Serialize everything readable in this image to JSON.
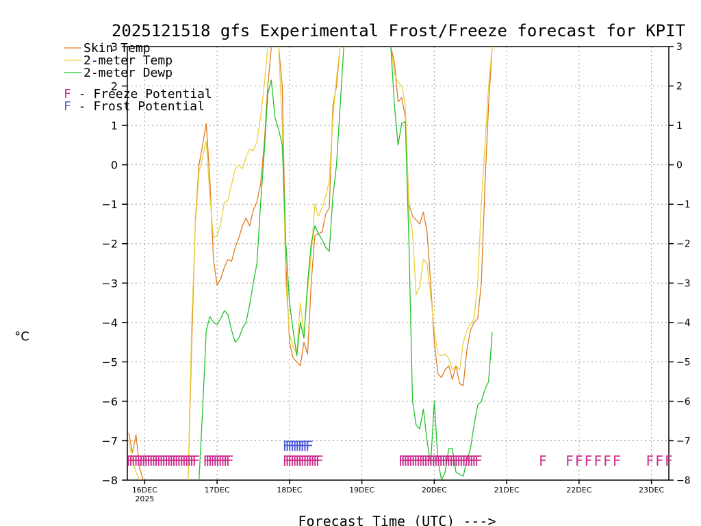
{
  "chart_data": {
    "type": "line",
    "title": "2025121518 gfs Experimental Frost/Freeze forecast for KPIT",
    "xlabel": "Forecast Time (UTC) --->",
    "ylabel": "°C",
    "ylim": [
      -8,
      3
    ],
    "xlim": [
      -0.24,
      7.24
    ],
    "yticks": [
      -8,
      -7,
      -6,
      -5,
      -4,
      -3,
      -2,
      -1,
      0,
      1,
      2,
      3
    ],
    "xticks": [
      {
        "x": 0,
        "label": "16DEC",
        "sub": "2025"
      },
      {
        "x": 1,
        "label": "17DEC",
        "sub": ""
      },
      {
        "x": 2,
        "label": "18DEC",
        "sub": ""
      },
      {
        "x": 3,
        "label": "19DEC",
        "sub": ""
      },
      {
        "x": 4,
        "label": "20DEC",
        "sub": ""
      },
      {
        "x": 5,
        "label": "21DEC",
        "sub": ""
      },
      {
        "x": 6,
        "label": "22DEC",
        "sub": ""
      },
      {
        "x": 7,
        "label": "23DEC",
        "sub": ""
      }
    ],
    "colors": {
      "skin": "#e07b20",
      "t2m": "#e8d23a",
      "dewp": "#22c22a",
      "freeze": "#cc2d8e",
      "frost": "#4a5bd6"
    },
    "legend": [
      {
        "label": "Skin Temp",
        "key": "skin"
      },
      {
        "label": "2-meter Temp",
        "key": "t2m"
      },
      {
        "label": "2-meter Dewp",
        "key": "dewp"
      }
    ],
    "legend_markers": [
      {
        "label": "F - Freeze Potential",
        "key": "freeze"
      },
      {
        "label": "F - Frost Potential",
        "key": "frost"
      }
    ],
    "series": [
      {
        "name": "Skin Temp",
        "key": "skin",
        "segments": [
          [
            [
              -0.22,
              -6.8
            ],
            [
              -0.17,
              -7.3
            ],
            [
              -0.12,
              -6.85
            ],
            [
              -0.07,
              -7.7
            ],
            [
              -0.02,
              -8.0
            ]
          ],
          [
            [
              0.6,
              -8.0
            ],
            [
              0.65,
              -4.5
            ],
            [
              0.7,
              -1.4
            ],
            [
              0.75,
              0.0
            ],
            [
              0.8,
              0.5
            ],
            [
              0.85,
              1.05
            ],
            [
              0.9,
              -0.4
            ],
            [
              0.95,
              -2.4
            ],
            [
              1.0,
              -3.05
            ],
            [
              1.05,
              -2.9
            ],
            [
              1.1,
              -2.6
            ],
            [
              1.15,
              -2.4
            ],
            [
              1.2,
              -2.45
            ],
            [
              1.25,
              -2.1
            ],
            [
              1.3,
              -1.85
            ],
            [
              1.35,
              -1.55
            ],
            [
              1.4,
              -1.35
            ],
            [
              1.45,
              -1.55
            ],
            [
              1.5,
              -1.15
            ],
            [
              1.55,
              -0.95
            ],
            [
              1.6,
              -0.5
            ],
            [
              1.65,
              0.5
            ],
            [
              1.7,
              2.0
            ],
            [
              1.75,
              3.0
            ]
          ],
          [
            [
              1.85,
              3.0
            ],
            [
              1.9,
              2.0
            ],
            [
              1.95,
              -2.5
            ],
            [
              2.0,
              -4.5
            ],
            [
              2.05,
              -4.9
            ],
            [
              2.1,
              -5.0
            ],
            [
              2.15,
              -5.1
            ],
            [
              2.2,
              -4.5
            ],
            [
              2.25,
              -4.8
            ],
            [
              2.3,
              -3.0
            ],
            [
              2.35,
              -1.8
            ],
            [
              2.4,
              -1.75
            ],
            [
              2.45,
              -1.7
            ],
            [
              2.5,
              -1.25
            ],
            [
              2.55,
              -1.1
            ],
            [
              2.6,
              1.5
            ],
            [
              2.65,
              2.0
            ],
            [
              2.7,
              3.0
            ]
          ],
          [
            [
              3.4,
              3.0
            ],
            [
              3.45,
              2.6
            ],
            [
              3.5,
              1.6
            ],
            [
              3.55,
              1.7
            ],
            [
              3.6,
              1.2
            ],
            [
              3.65,
              -1.0
            ],
            [
              3.7,
              -1.3
            ],
            [
              3.75,
              -1.4
            ],
            [
              3.8,
              -1.5
            ],
            [
              3.85,
              -1.2
            ],
            [
              3.9,
              -1.7
            ],
            [
              3.95,
              -3.0
            ],
            [
              4.0,
              -4.5
            ],
            [
              4.05,
              -5.3
            ],
            [
              4.1,
              -5.4
            ],
            [
              4.15,
              -5.2
            ],
            [
              4.2,
              -5.1
            ],
            [
              4.25,
              -5.45
            ],
            [
              4.3,
              -5.1
            ],
            [
              4.35,
              -5.55
            ],
            [
              4.4,
              -5.6
            ],
            [
              4.45,
              -4.7
            ],
            [
              4.5,
              -4.2
            ],
            [
              4.55,
              -4.0
            ],
            [
              4.6,
              -3.9
            ],
            [
              4.65,
              -3.0
            ],
            [
              4.7,
              -0.5
            ],
            [
              4.75,
              1.5
            ],
            [
              4.8,
              3.0
            ]
          ]
        ]
      },
      {
        "name": "2-meter Temp",
        "key": "t2m",
        "segments": [
          [
            [
              -0.22,
              -7.0
            ],
            [
              -0.17,
              -7.5
            ],
            [
              -0.12,
              -7.8
            ],
            [
              -0.07,
              -8.0
            ]
          ],
          [
            [
              0.6,
              -8.0
            ],
            [
              0.65,
              -4.0
            ],
            [
              0.7,
              -1.5
            ],
            [
              0.75,
              -0.2
            ],
            [
              0.8,
              0.2
            ],
            [
              0.85,
              0.6
            ],
            [
              0.9,
              -0.8
            ],
            [
              0.95,
              -1.85
            ],
            [
              1.0,
              -1.8
            ],
            [
              1.05,
              -1.5
            ],
            [
              1.1,
              -0.95
            ],
            [
              1.15,
              -0.9
            ],
            [
              1.2,
              -0.5
            ],
            [
              1.25,
              -0.1
            ],
            [
              1.3,
              0.0
            ],
            [
              1.35,
              -0.1
            ],
            [
              1.4,
              0.2
            ],
            [
              1.45,
              0.4
            ],
            [
              1.5,
              0.35
            ],
            [
              1.55,
              0.6
            ],
            [
              1.6,
              1.2
            ],
            [
              1.65,
              2.0
            ],
            [
              1.7,
              3.0
            ]
          ],
          [
            [
              1.85,
              3.0
            ],
            [
              1.9,
              1.0
            ],
            [
              1.95,
              -3.0
            ],
            [
              2.0,
              -4.3
            ],
            [
              2.05,
              -4.6
            ],
            [
              2.1,
              -4.8
            ],
            [
              2.15,
              -3.5
            ],
            [
              2.2,
              -4.3
            ],
            [
              2.25,
              -3.2
            ],
            [
              2.3,
              -2.3
            ],
            [
              2.35,
              -1.0
            ],
            [
              2.4,
              -1.3
            ],
            [
              2.45,
              -1.1
            ],
            [
              2.5,
              -0.8
            ],
            [
              2.55,
              -0.4
            ],
            [
              2.6,
              1.2
            ],
            [
              2.65,
              2.2
            ],
            [
              2.7,
              3.0
            ]
          ],
          [
            [
              3.4,
              3.0
            ],
            [
              3.45,
              2.3
            ],
            [
              3.5,
              2.1
            ],
            [
              3.55,
              2.0
            ],
            [
              3.6,
              1.5
            ],
            [
              3.65,
              -1.2
            ],
            [
              3.7,
              -1.7
            ],
            [
              3.75,
              -3.3
            ],
            [
              3.8,
              -3.1
            ],
            [
              3.85,
              -2.4
            ],
            [
              3.9,
              -2.5
            ],
            [
              3.95,
              -3.3
            ],
            [
              4.0,
              -4.2
            ],
            [
              4.05,
              -4.8
            ],
            [
              4.1,
              -4.85
            ],
            [
              4.15,
              -4.8
            ],
            [
              4.2,
              -4.9
            ],
            [
              4.25,
              -5.2
            ],
            [
              4.3,
              -5.1
            ],
            [
              4.35,
              -5.2
            ],
            [
              4.4,
              -4.5
            ],
            [
              4.45,
              -4.2
            ],
            [
              4.5,
              -4.05
            ],
            [
              4.55,
              -3.9
            ],
            [
              4.6,
              -3.0
            ],
            [
              4.65,
              -1.0
            ],
            [
              4.7,
              0.5
            ],
            [
              4.75,
              2.0
            ],
            [
              4.8,
              3.0
            ]
          ]
        ]
      },
      {
        "name": "2-meter Dewp",
        "key": "dewp",
        "segments": [
          [
            [
              0.75,
              -8.0
            ],
            [
              0.8,
              -6.2
            ],
            [
              0.85,
              -4.2
            ],
            [
              0.9,
              -3.85
            ],
            [
              0.95,
              -4.0
            ],
            [
              1.0,
              -4.05
            ],
            [
              1.05,
              -3.9
            ],
            [
              1.1,
              -3.7
            ],
            [
              1.15,
              -3.8
            ],
            [
              1.2,
              -4.2
            ],
            [
              1.25,
              -4.5
            ],
            [
              1.3,
              -4.4
            ],
            [
              1.35,
              -4.15
            ],
            [
              1.4,
              -4.0
            ],
            [
              1.45,
              -3.55
            ],
            [
              1.5,
              -3.0
            ],
            [
              1.55,
              -2.5
            ],
            [
              1.6,
              -1.0
            ],
            [
              1.65,
              0.3
            ],
            [
              1.7,
              1.8
            ],
            [
              1.75,
              2.15
            ],
            [
              1.8,
              1.2
            ],
            [
              1.85,
              0.9
            ],
            [
              1.9,
              0.5
            ],
            [
              1.95,
              -2.0
            ],
            [
              2.0,
              -3.5
            ],
            [
              2.05,
              -4.2
            ],
            [
              2.1,
              -4.85
            ],
            [
              2.15,
              -4.0
            ],
            [
              2.2,
              -4.4
            ],
            [
              2.25,
              -3.0
            ],
            [
              2.3,
              -2.0
            ],
            [
              2.35,
              -1.55
            ],
            [
              2.4,
              -1.75
            ],
            [
              2.45,
              -1.9
            ],
            [
              2.5,
              -2.1
            ],
            [
              2.55,
              -2.2
            ],
            [
              2.6,
              -0.8
            ],
            [
              2.65,
              0.0
            ],
            [
              2.7,
              1.5
            ],
            [
              2.75,
              3.0
            ]
          ],
          [
            [
              3.4,
              3.0
            ],
            [
              3.45,
              1.5
            ],
            [
              3.5,
              0.5
            ],
            [
              3.55,
              1.05
            ],
            [
              3.6,
              1.1
            ],
            [
              3.65,
              -2.0
            ],
            [
              3.7,
              -6.0
            ],
            [
              3.75,
              -6.6
            ],
            [
              3.8,
              -6.7
            ],
            [
              3.85,
              -6.2
            ],
            [
              3.9,
              -7.0
            ],
            [
              3.95,
              -7.6
            ],
            [
              4.0,
              -6.0
            ],
            [
              4.05,
              -7.5
            ],
            [
              4.1,
              -8.0
            ],
            [
              4.15,
              -7.8
            ],
            [
              4.2,
              -7.2
            ],
            [
              4.25,
              -7.2
            ],
            [
              4.3,
              -7.8
            ],
            [
              4.35,
              -7.85
            ],
            [
              4.4,
              -7.9
            ],
            [
              4.45,
              -7.5
            ],
            [
              4.5,
              -7.2
            ],
            [
              4.55,
              -6.6
            ],
            [
              4.6,
              -6.1
            ],
            [
              4.65,
              -6.0
            ],
            [
              4.7,
              -5.7
            ],
            [
              4.75,
              -5.5
            ],
            [
              4.8,
              -4.25
            ]
          ]
        ]
      }
    ],
    "freeze_markers": {
      "glyph": "F",
      "y": -7.5,
      "x": [
        -0.2,
        -0.165,
        -0.13,
        -0.095,
        -0.06,
        -0.025,
        0.01,
        0.045,
        0.08,
        0.115,
        0.15,
        0.185,
        0.22,
        0.255,
        0.29,
        0.325,
        0.36,
        0.395,
        0.43,
        0.465,
        0.5,
        0.535,
        0.57,
        0.605,
        0.64,
        0.675,
        0.71,
        0.86,
        0.895,
        0.93,
        0.965,
        1.0,
        1.035,
        1.07,
        1.105,
        1.14,
        1.175,
        1.96,
        1.995,
        2.03,
        2.065,
        2.1,
        2.135,
        2.17,
        2.205,
        2.24,
        2.275,
        2.31,
        2.345,
        2.38,
        2.415,
        3.56,
        3.595,
        3.63,
        3.665,
        3.7,
        3.735,
        3.77,
        3.805,
        3.84,
        3.875,
        3.91,
        3.945,
        3.98,
        4.015,
        4.05,
        4.085,
        4.12,
        4.155,
        4.19,
        4.225,
        4.26,
        4.295,
        4.33,
        4.365,
        4.4,
        4.435,
        4.47,
        4.505,
        4.54,
        4.575,
        4.61,
        5.5,
        5.87,
        6.0,
        6.13,
        6.26,
        6.39,
        6.52,
        6.98,
        7.11,
        7.24
      ]
    },
    "frost_markers": {
      "glyph": "F",
      "y": -7.12,
      "x": [
        1.96,
        1.995,
        2.03,
        2.065,
        2.1,
        2.135,
        2.17,
        2.205,
        2.24,
        2.275
      ]
    }
  }
}
